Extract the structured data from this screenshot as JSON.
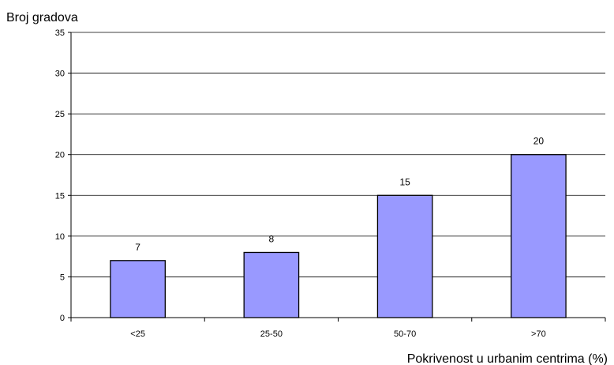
{
  "chart_data": {
    "type": "bar",
    "title": "",
    "ylabel": "Broj gradova",
    "xlabel": "Pokrivenost u urbanim centrima (%)",
    "categories": [
      "<25",
      "25-50",
      "50-70",
      ">70"
    ],
    "values": [
      7,
      8,
      15,
      20
    ],
    "ylim": [
      0,
      35
    ],
    "yticks": [
      "0",
      "5",
      "10",
      "15",
      "20",
      "25",
      "30",
      "35"
    ],
    "grid": true,
    "bar_color": "#9999ff",
    "data_labels": [
      "7",
      "8",
      "15",
      "20"
    ]
  }
}
